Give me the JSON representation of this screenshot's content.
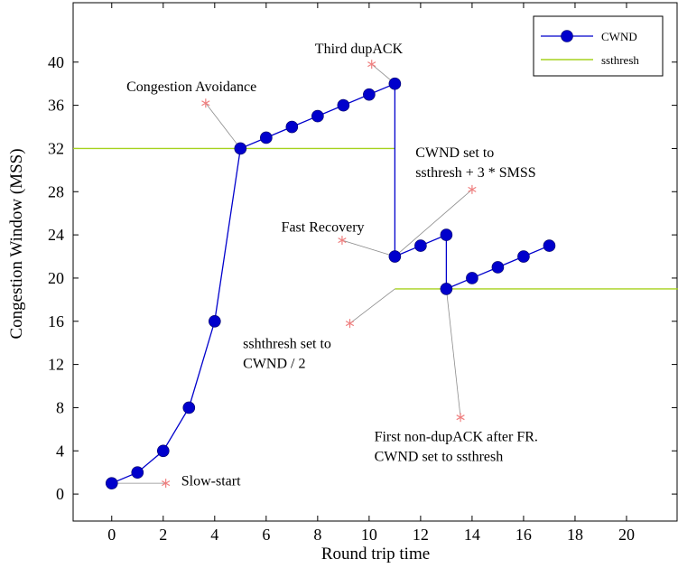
{
  "chart_data": {
    "type": "line",
    "xlabel": "Round trip time",
    "ylabel": "Congestion Window (MSS)",
    "xlim": [
      -1.5,
      22
    ],
    "ylim": [
      -2.5,
      45.5
    ],
    "xticks": [
      0,
      2,
      4,
      6,
      8,
      10,
      12,
      14,
      16,
      18,
      20
    ],
    "yticks": [
      0,
      4,
      8,
      12,
      16,
      20,
      24,
      28,
      32,
      36,
      40
    ],
    "legend_position": "top-right",
    "grid": false,
    "series": [
      {
        "name": "CWND",
        "color": "#0000cc",
        "marker": "circle",
        "points": [
          [
            0,
            1
          ],
          [
            1,
            2
          ],
          [
            2,
            4
          ],
          [
            3,
            8
          ],
          [
            4,
            16
          ],
          [
            5,
            32
          ],
          [
            6,
            33
          ],
          [
            7,
            34
          ],
          [
            8,
            35
          ],
          [
            9,
            36
          ],
          [
            10,
            37
          ],
          [
            11,
            38
          ],
          [
            11,
            22
          ],
          [
            12,
            23
          ],
          [
            13,
            24
          ],
          [
            13,
            19
          ],
          [
            14,
            20
          ],
          [
            15,
            21
          ],
          [
            16,
            22
          ],
          [
            17,
            23
          ]
        ]
      },
      {
        "name": "ssthresh",
        "color": "#a6d21e",
        "segments": [
          {
            "x": [
              -1.5,
              11
            ],
            "y": 32
          },
          {
            "x": [
              11,
              22
            ],
            "y": 19
          }
        ]
      }
    ],
    "annotations": [
      {
        "lines": [
          "Slow-start"
        ],
        "star": [
          2.1,
          1
        ],
        "target": [
          0,
          1
        ],
        "text_at": [
          2.7,
          0.8
        ],
        "anchor": "start"
      },
      {
        "lines": [
          "Congestion Avoidance"
        ],
        "star": [
          3.65,
          36.2
        ],
        "target": [
          5,
          32
        ],
        "text_at": [
          3.1,
          37.3
        ],
        "anchor": "middle"
      },
      {
        "lines": [
          "Third dupACK"
        ],
        "star": [
          10.1,
          39.8
        ],
        "target": [
          11,
          38
        ],
        "text_at": [
          9.6,
          40.8
        ],
        "anchor": "middle"
      },
      {
        "lines": [
          "CWND set to",
          "ssthresh + 3 * SMSS"
        ],
        "star": [
          14,
          28.2
        ],
        "target": [
          11,
          22
        ],
        "text_at": [
          11.8,
          31.2
        ],
        "anchor": "start"
      },
      {
        "lines": [
          "Fast Recovery"
        ],
        "star": [
          8.95,
          23.5
        ],
        "target": [
          11,
          22
        ],
        "text_at": [
          8.2,
          24.3
        ],
        "anchor": "middle"
      },
      {
        "lines": [
          "sshthresh set to",
          "CWND / 2"
        ],
        "star": [
          9.25,
          15.8
        ],
        "target": [
          11,
          19
        ],
        "text_at": [
          5.1,
          13.5
        ],
        "anchor": "start"
      },
      {
        "lines": [
          "First non-dupACK after FR.",
          "CWND set to ssthresh"
        ],
        "star": [
          13.55,
          7.1
        ],
        "target": [
          13,
          19
        ],
        "text_at": [
          10.2,
          4.9
        ],
        "anchor": "start"
      }
    ]
  }
}
